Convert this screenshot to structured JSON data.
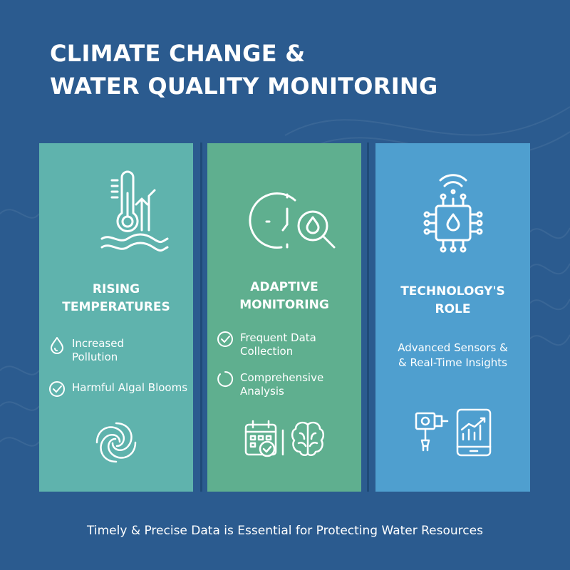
{
  "header": {
    "title_line1": "CLIMATE CHANGE &",
    "title_line2": "WATER QUALITY MONITORING"
  },
  "panels": [
    {
      "title_line1": "RISING",
      "title_line2": "TEMPERATURES",
      "main_icon": "thermometer-waves-icon",
      "items": [
        {
          "icon": "droplet-icon",
          "line1": "Increased",
          "line2": "Pollution"
        },
        {
          "icon": "check-circle-icon",
          "line1": "Harmful Algal Blooms",
          "line2": ""
        }
      ],
      "bottom_icon": "swirl-icon",
      "color": "#5fb3ad"
    },
    {
      "title_line1": "ADAPTIVE",
      "title_line2": "MONITORING",
      "main_icon": "clock-magnifier-drop-icon",
      "items": [
        {
          "icon": "check-circle-icon",
          "line1": "Frequent Data",
          "line2": "Collection"
        },
        {
          "icon": "circle-icon",
          "line1": "Comprehensive",
          "line2": "Analysis"
        }
      ],
      "bottom_icons": [
        "calendar-check-icon",
        "brain-icon"
      ],
      "color": "#5faf8f"
    },
    {
      "title_line1": "TECHNOLOGY'S",
      "title_line2": "ROLE",
      "main_icon": "sensor-chip-icon",
      "text_line1": "Advanced Sensors &",
      "text_line2": "& Real-Time Insights",
      "bottom_icons": [
        "sensor-probe-icon",
        "tablet-chart-icon"
      ],
      "color": "#4f9fcf"
    }
  ],
  "footer": {
    "text": "Timely & Precise Data is Essential for Protecting Water Resources"
  },
  "colors": {
    "background": "#2b5b8f",
    "text": "#ffffff"
  }
}
